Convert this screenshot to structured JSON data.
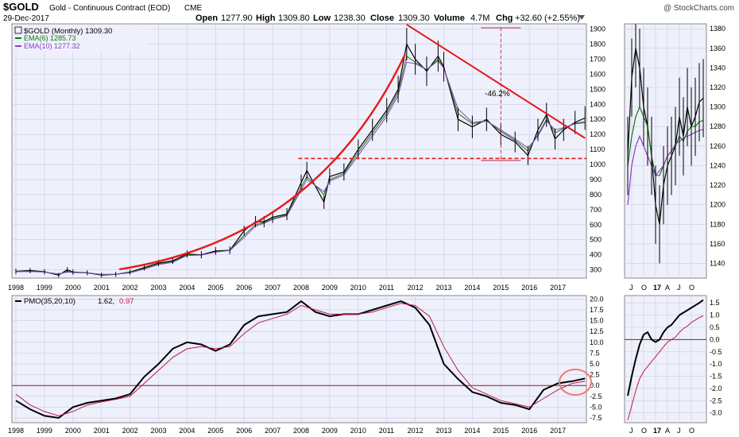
{
  "header": {
    "symbol": "$GOLD",
    "name": "Gold - Continuous Contract (EOD)",
    "exchange": "CME",
    "date": "29-Dec-2017",
    "open_label": "Open",
    "open": "1277.90",
    "high_label": "High",
    "high": "1309.80",
    "low_label": "Low",
    "low": "1238.30",
    "close_label": "Close",
    "close": "1309.30",
    "volume_label": "Volume",
    "volume": "4.7M",
    "chg_label": "Chg",
    "chg": "+32.60 (+2.55%)",
    "watermark": "@ StockCharts.com"
  },
  "legend": {
    "series": "$GOLD (Monthly) 1309.30",
    "ema6": "EMA(6) 1285.73",
    "ema10": "EMA(10) 1277.32"
  },
  "pmo": {
    "label": "PMO(35,20,10)",
    "value1": "1.62,",
    "value2": "0.97"
  },
  "annotations": {
    "drop": "-46.2%"
  },
  "colors": {
    "panel_bg": "#eef0fb",
    "grid": "#c9cde8",
    "price": "#000000",
    "ema6": "#0e7a0e",
    "ema10": "#8b3fc4",
    "pmo_signal": "#c0184a",
    "trend_red": "#e81818",
    "zero_line": "#8b1a2a"
  },
  "chart_data": [
    {
      "type": "line",
      "title": "$GOLD (Monthly)",
      "x_tick_labels": [
        "1998",
        "1999",
        "2000",
        "2001",
        "2002",
        "2003",
        "2004",
        "2005",
        "2006",
        "2007",
        "2008",
        "2009",
        "2010",
        "2011",
        "2012",
        "2013",
        "2014",
        "2015",
        "2016",
        "2017"
      ],
      "y_tick_labels": [
        "300",
        "400",
        "500",
        "600",
        "700",
        "800",
        "900",
        "1000",
        "1100",
        "1200",
        "1300",
        "1400",
        "1500",
        "1600",
        "1700",
        "1800",
        "1900"
      ],
      "ylim": [
        245,
        1935
      ],
      "x": [
        1998.0,
        1998.5,
        1999.0,
        1999.5,
        1999.8,
        2000.0,
        2000.5,
        2001.0,
        2001.5,
        2002.0,
        2002.5,
        2003.0,
        2003.5,
        2004.0,
        2004.5,
        2005.0,
        2005.5,
        2006.0,
        2006.4,
        2006.7,
        2007.0,
        2007.5,
        2008.0,
        2008.2,
        2008.8,
        2009.0,
        2009.5,
        2010.0,
        2010.5,
        2011.0,
        2011.4,
        2011.7,
        2012.0,
        2012.4,
        2012.8,
        2013.0,
        2013.5,
        2014.0,
        2014.5,
        2015.0,
        2015.5,
        2015.95,
        2016.3,
        2016.6,
        2016.9,
        2017.2,
        2017.6,
        2017.95
      ],
      "series": [
        {
          "name": "$GOLD (Monthly)",
          "values": [
            290,
            295,
            287,
            265,
            300,
            285,
            280,
            265,
            270,
            285,
            315,
            345,
            360,
            405,
            400,
            425,
            430,
            560,
            620,
            620,
            650,
            670,
            880,
            960,
            750,
            920,
            950,
            1100,
            1230,
            1360,
            1500,
            1800,
            1700,
            1620,
            1720,
            1650,
            1300,
            1250,
            1300,
            1200,
            1150,
            1060,
            1230,
            1330,
            1170,
            1230,
            1280,
            1309
          ]
        },
        {
          "name": "EMA(6)",
          "values": [
            288,
            290,
            285,
            270,
            290,
            283,
            280,
            268,
            270,
            283,
            310,
            340,
            355,
            400,
            398,
            420,
            430,
            530,
            600,
            615,
            640,
            665,
            850,
            920,
            800,
            900,
            940,
            1080,
            1210,
            1340,
            1480,
            1720,
            1680,
            1630,
            1700,
            1640,
            1340,
            1270,
            1290,
            1220,
            1160,
            1090,
            1200,
            1300,
            1210,
            1240,
            1275,
            1285
          ]
        },
        {
          "name": "EMA(10)",
          "values": [
            288,
            289,
            285,
            272,
            285,
            282,
            280,
            270,
            270,
            280,
            305,
            335,
            350,
            395,
            398,
            418,
            428,
            515,
            590,
            610,
            635,
            660,
            830,
            900,
            820,
            890,
            930,
            1060,
            1190,
            1320,
            1460,
            1680,
            1670,
            1630,
            1690,
            1640,
            1370,
            1280,
            1290,
            1230,
            1170,
            1110,
            1190,
            1290,
            1230,
            1245,
            1270,
            1277
          ]
        }
      ],
      "annotations": {
        "support_level": 1040,
        "resistance_start": [
          2011.7,
          1930
        ],
        "resistance_end": [
          2017.95,
          1175
        ],
        "drop_pct": "-46.2%"
      }
    },
    {
      "type": "line",
      "title": "$GOLD (Monthly) zoom",
      "x_tick_labels": [
        "J",
        "O",
        "17",
        "A",
        "J",
        "O"
      ],
      "y_tick_labels": [
        "1140",
        "1160",
        "1180",
        "1200",
        "1220",
        "1240",
        "1260",
        "1280",
        "1300",
        "1320",
        "1340",
        "1360",
        "1380"
      ],
      "ylim": [
        1125,
        1385
      ],
      "x": [
        0,
        1,
        2,
        3,
        4,
        5,
        6,
        7,
        8,
        9,
        10,
        11,
        12,
        13,
        14,
        15,
        16,
        17,
        18,
        19
      ],
      "series": [
        {
          "name": "$GOLD (Monthly)",
          "values": [
            1250,
            1330,
            1360,
            1340,
            1300,
            1280,
            1250,
            1200,
            1180,
            1220,
            1240,
            1250,
            1260,
            1290,
            1270,
            1300,
            1280,
            1290,
            1305,
            1309
          ]
        },
        {
          "name": "EMA(6)",
          "values": [
            1240,
            1270,
            1290,
            1300,
            1290,
            1280,
            1250,
            1230,
            1230,
            1240,
            1250,
            1255,
            1260,
            1270,
            1265,
            1275,
            1280,
            1280,
            1285,
            1286
          ]
        },
        {
          "name": "EMA(10)",
          "values": [
            1200,
            1240,
            1260,
            1270,
            1260,
            1250,
            1240,
            1230,
            1235,
            1240,
            1250,
            1255,
            1262,
            1265,
            1268,
            1270,
            1272,
            1274,
            1276,
            1277
          ]
        }
      ]
    },
    {
      "type": "line",
      "title": "PMO(35,20,10)",
      "x_tick_labels": [
        "1998",
        "1999",
        "2000",
        "2001",
        "2002",
        "2003",
        "2004",
        "2005",
        "2006",
        "2007",
        "2008",
        "2009",
        "2010",
        "2011",
        "2012",
        "2013",
        "2014",
        "2015",
        "2016",
        "2017"
      ],
      "y_tick_labels": [
        "-7.5",
        "-5.0",
        "-2.5",
        "0.0",
        "2.5",
        "5.0",
        "7.5",
        "10.0",
        "12.5",
        "15.0",
        "17.5",
        "20.0"
      ],
      "ylim": [
        -8.6,
        20.8
      ],
      "x": [
        1998.0,
        1998.5,
        1999.0,
        1999.5,
        2000.0,
        2000.5,
        2001.0,
        2001.5,
        2002.0,
        2002.5,
        2003.0,
        2003.5,
        2004.0,
        2004.5,
        2005.0,
        2005.5,
        2006.0,
        2006.5,
        2007.0,
        2007.5,
        2008.0,
        2008.5,
        2009.0,
        2009.5,
        2010.0,
        2010.5,
        2011.0,
        2011.5,
        2012.0,
        2012.5,
        2013.0,
        2013.5,
        2014.0,
        2014.5,
        2015.0,
        2015.5,
        2016.0,
        2016.5,
        2017.0,
        2017.5,
        2017.95
      ],
      "series": [
        {
          "name": "PMO",
          "values": [
            -3.5,
            -5.5,
            -7.0,
            -7.5,
            -5.0,
            -4.0,
            -3.5,
            -3.0,
            -2.0,
            2.0,
            5.0,
            8.5,
            10.0,
            9.5,
            8.0,
            9.5,
            14.0,
            16.0,
            16.5,
            17.0,
            19.5,
            17.0,
            16.0,
            16.5,
            16.5,
            17.5,
            18.5,
            19.5,
            18.0,
            14.0,
            5.0,
            1.5,
            -1.5,
            -2.5,
            -4.0,
            -4.5,
            -5.5,
            -1.0,
            0.5,
            1.0,
            1.62
          ]
        },
        {
          "name": "Signal",
          "values": [
            -2.0,
            -4.5,
            -6.0,
            -7.0,
            -6.0,
            -4.5,
            -3.8,
            -3.2,
            -2.5,
            0.5,
            3.5,
            6.5,
            8.5,
            9.0,
            8.5,
            9.0,
            12.0,
            14.5,
            15.5,
            16.5,
            18.5,
            17.5,
            16.5,
            16.5,
            16.5,
            17.0,
            18.0,
            19.0,
            18.5,
            16.0,
            9.0,
            3.5,
            -0.5,
            -2.0,
            -3.5,
            -4.2,
            -5.0,
            -3.0,
            -1.0,
            0.5,
            0.97
          ]
        }
      ]
    },
    {
      "type": "line",
      "title": "PMO(35,20,10) zoom",
      "x_tick_labels": [
        "J",
        "O",
        "17",
        "A",
        "J",
        "O"
      ],
      "y_tick_labels": [
        "-3.0",
        "-2.5",
        "-2.0",
        "-1.5",
        "-1.0",
        "-0.5",
        "0.0",
        "0.5",
        "1.0",
        "1.5"
      ],
      "ylim": [
        -3.4,
        1.8
      ],
      "x": [
        0,
        1,
        2,
        3,
        4,
        5,
        6,
        7,
        8,
        9,
        10,
        11,
        12,
        13,
        14,
        15,
        16,
        17,
        18,
        19
      ],
      "series": [
        {
          "name": "PMO",
          "values": [
            -2.3,
            -1.5,
            -0.8,
            -0.2,
            0.2,
            0.3,
            0.0,
            -0.1,
            0.0,
            0.3,
            0.5,
            0.6,
            0.8,
            1.0,
            1.1,
            1.2,
            1.3,
            1.4,
            1.5,
            1.62
          ]
        },
        {
          "name": "Signal",
          "values": [
            -3.3,
            -2.7,
            -2.1,
            -1.6,
            -1.3,
            -1.1,
            -0.9,
            -0.7,
            -0.5,
            -0.3,
            -0.1,
            0.0,
            0.1,
            0.3,
            0.45,
            0.55,
            0.7,
            0.8,
            0.9,
            0.97
          ]
        }
      ]
    }
  ]
}
